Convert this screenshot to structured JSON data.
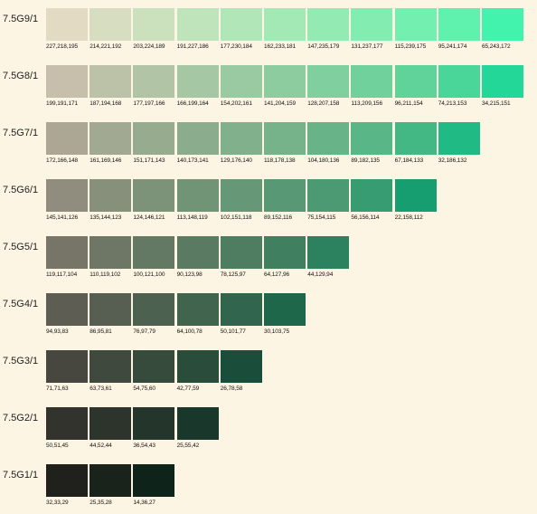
{
  "chart_data": {
    "type": "table",
    "rows": [
      {
        "label": "7.5G9/1",
        "cells": [
          {
            "rgb": "227,218,195",
            "hex": "#e3dac3"
          },
          {
            "rgb": "214,221,192",
            "hex": "#d6ddc0"
          },
          {
            "rgb": "203,224,189",
            "hex": "#cbe0bd"
          },
          {
            "rgb": "191,227,186",
            "hex": "#bfe3ba"
          },
          {
            "rgb": "177,230,184",
            "hex": "#b1e6b8"
          },
          {
            "rgb": "162,233,181",
            "hex": "#a2e9b5"
          },
          {
            "rgb": "147,235,179",
            "hex": "#93ebb3"
          },
          {
            "rgb": "131,237,177",
            "hex": "#83edb1"
          },
          {
            "rgb": "115,239,175",
            "hex": "#73efaf"
          },
          {
            "rgb": "95,241,174",
            "hex": "#5ff1ae"
          },
          {
            "rgb": "65,243,172",
            "hex": "#41f3ac"
          }
        ]
      },
      {
        "label": "7.5G8/1",
        "cells": [
          {
            "rgb": "199,191,171",
            "hex": "#c7bfab"
          },
          {
            "rgb": "187,194,168",
            "hex": "#bbc2a8"
          },
          {
            "rgb": "177,197,166",
            "hex": "#b1c5a6"
          },
          {
            "rgb": "166,199,164",
            "hex": "#a6c7a4"
          },
          {
            "rgb": "154,202,161",
            "hex": "#9acaa1"
          },
          {
            "rgb": "141,204,159",
            "hex": "#8dcc9f"
          },
          {
            "rgb": "128,207,158",
            "hex": "#80cf9e"
          },
          {
            "rgb": "113,209,156",
            "hex": "#71d19c"
          },
          {
            "rgb": "96,211,154",
            "hex": "#60d39a"
          },
          {
            "rgb": "74,213,153",
            "hex": "#4ad599"
          },
          {
            "rgb": "34,215,151",
            "hex": "#22d797"
          }
        ]
      },
      {
        "label": "7.5G7/1",
        "cells": [
          {
            "rgb": "172,166,148",
            "hex": "#aca694"
          },
          {
            "rgb": "161,169,146",
            "hex": "#a1a992"
          },
          {
            "rgb": "151,171,143",
            "hex": "#97ab8f"
          },
          {
            "rgb": "140,173,141",
            "hex": "#8cad8d"
          },
          {
            "rgb": "129,176,140",
            "hex": "#81b08c"
          },
          {
            "rgb": "118,178,138",
            "hex": "#76b28a"
          },
          {
            "rgb": "104,180,136",
            "hex": "#68b488"
          },
          {
            "rgb": "89,182,135",
            "hex": "#59b687"
          },
          {
            "rgb": "67,184,133",
            "hex": "#43b885"
          },
          {
            "rgb": "32,186,132",
            "hex": "#20ba84"
          }
        ]
      },
      {
        "label": "7.5G6/1",
        "cells": [
          {
            "rgb": "145,141,126",
            "hex": "#918d7e"
          },
          {
            "rgb": "135,144,123",
            "hex": "#87907b"
          },
          {
            "rgb": "124,146,121",
            "hex": "#7c9279"
          },
          {
            "rgb": "113,148,119",
            "hex": "#719477"
          },
          {
            "rgb": "102,151,118",
            "hex": "#669776"
          },
          {
            "rgb": "89,152,116",
            "hex": "#599874"
          },
          {
            "rgb": "75,154,115",
            "hex": "#4b9a73"
          },
          {
            "rgb": "56,156,114",
            "hex": "#389c72"
          },
          {
            "rgb": "22,158,112",
            "hex": "#169e70"
          }
        ]
      },
      {
        "label": "7.5G5/1",
        "cells": [
          {
            "rgb": "119,117,104",
            "hex": "#777568"
          },
          {
            "rgb": "110,119,102",
            "hex": "#6e7766"
          },
          {
            "rgb": "100,121,100",
            "hex": "#647964"
          },
          {
            "rgb": "90,123,98",
            "hex": "#5a7b62"
          },
          {
            "rgb": "78,125,97",
            "hex": "#4e7d61"
          },
          {
            "rgb": "64,127,96",
            "hex": "#407f60"
          },
          {
            "rgb": "44,129,94",
            "hex": "#2c815e"
          }
        ]
      },
      {
        "label": "7.5G4/1",
        "cells": [
          {
            "rgb": "94,93,83",
            "hex": "#5e5d53"
          },
          {
            "rgb": "86,95,81",
            "hex": "#565f51"
          },
          {
            "rgb": "76,97,79",
            "hex": "#4c614f"
          },
          {
            "rgb": "64,100,78",
            "hex": "#40644e"
          },
          {
            "rgb": "50,101,77",
            "hex": "#32654d"
          },
          {
            "rgb": "30,103,75",
            "hex": "#1e674b"
          }
        ]
      },
      {
        "label": "7.5G3/1",
        "cells": [
          {
            "rgb": "71,71,63",
            "hex": "#47473f"
          },
          {
            "rgb": "63,73,61",
            "hex": "#3f493d"
          },
          {
            "rgb": "54,75,60",
            "hex": "#364b3c"
          },
          {
            "rgb": "42,77,59",
            "hex": "#2a4d3b"
          },
          {
            "rgb": "26,78,58",
            "hex": "#1a4e3a"
          }
        ]
      },
      {
        "label": "7.5G2/1",
        "cells": [
          {
            "rgb": "50,51,45",
            "hex": "#32332d"
          },
          {
            "rgb": "44,52,44",
            "hex": "#2c342c"
          },
          {
            "rgb": "36,54,43",
            "hex": "#24362b"
          },
          {
            "rgb": "25,55,42",
            "hex": "#19372a"
          }
        ]
      },
      {
        "label": "7.5G1/1",
        "cells": [
          {
            "rgb": "32,33,29",
            "hex": "#20211d"
          },
          {
            "rgb": "25,35,28",
            "hex": "#19231c"
          },
          {
            "rgb": "14,36,27",
            "hex": "#0e241b"
          }
        ]
      }
    ]
  }
}
